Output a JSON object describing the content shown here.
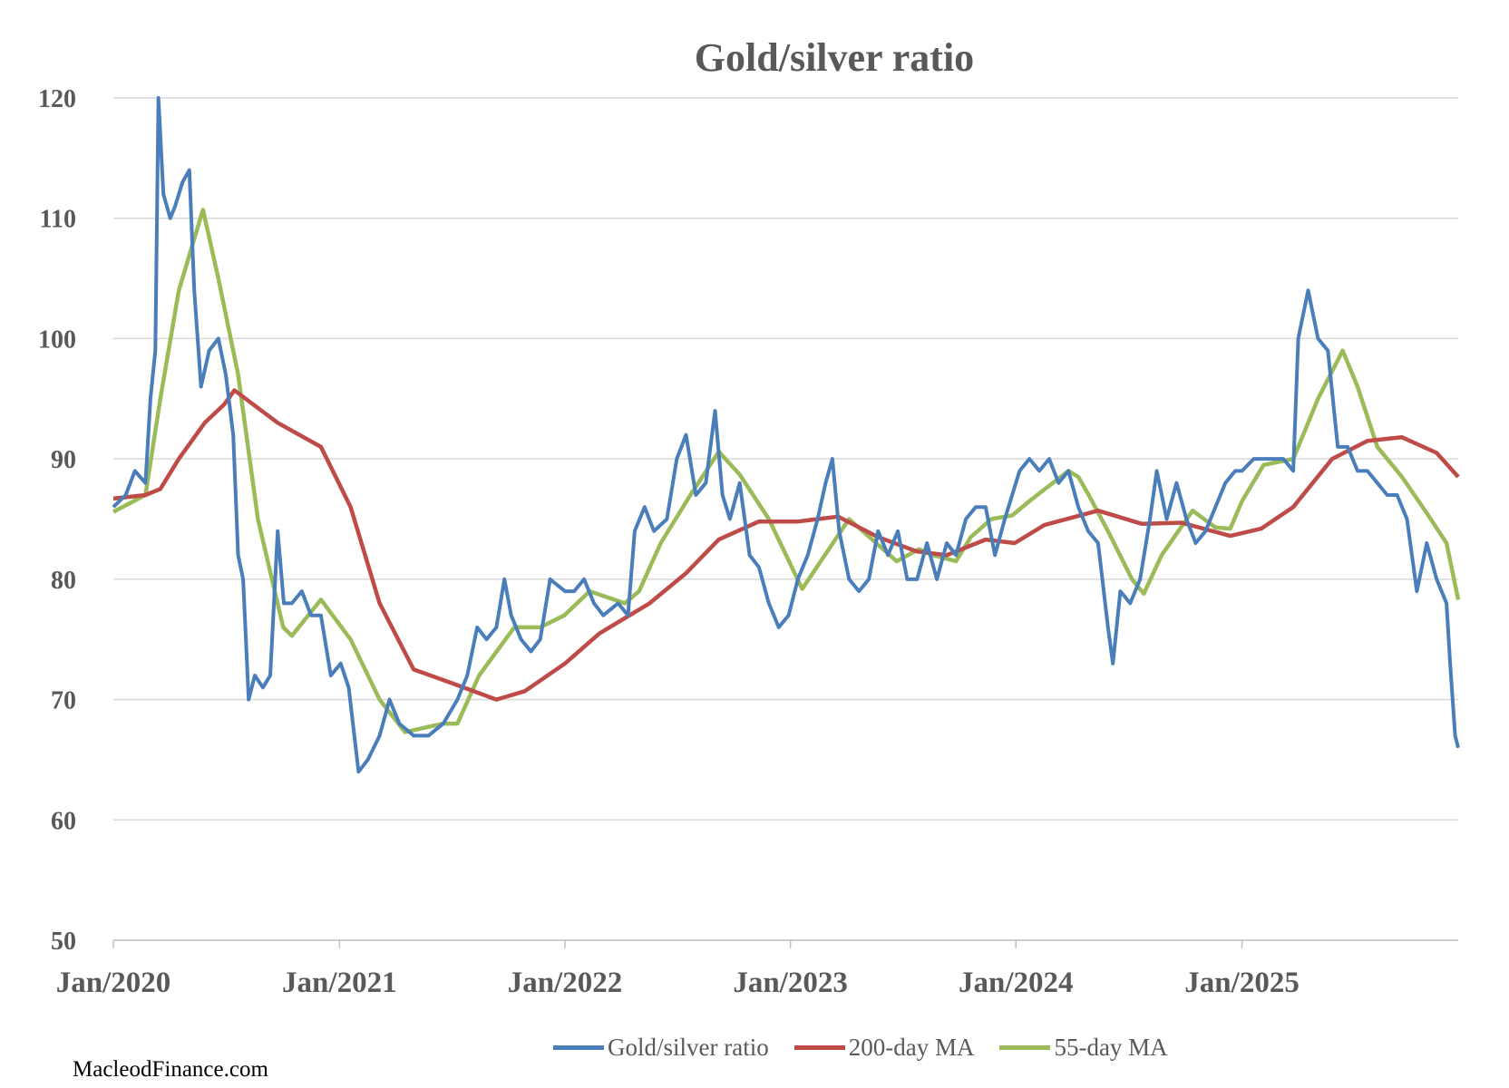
{
  "chart_data": {
    "type": "line",
    "title": "Gold/silver ratio",
    "xlabel": "",
    "ylabel": "",
    "ylim": [
      50,
      120
    ],
    "yticks": [
      50,
      60,
      70,
      80,
      90,
      100,
      110,
      120
    ],
    "xticks": [
      "Jan/2020",
      "Jan/2021",
      "Jan/2022",
      "Jan/2023",
      "Jan/2024",
      "Jan/2025"
    ],
    "xlim": [
      "2020-01-01",
      "2025-12-17"
    ],
    "grid": true,
    "legend_position": "bottom",
    "series": [
      {
        "name": "Gold/silver ratio",
        "color": "#4a7ebb",
        "points": [
          [
            "2020-01-01",
            86
          ],
          [
            "2020-01-21",
            87
          ],
          [
            "2020-02-05",
            89
          ],
          [
            "2020-02-22",
            88
          ],
          [
            "2020-03-01",
            95
          ],
          [
            "2020-03-09",
            99
          ],
          [
            "2020-03-14",
            120
          ],
          [
            "2020-03-22",
            112
          ],
          [
            "2020-04-02",
            110
          ],
          [
            "2020-04-10",
            111
          ],
          [
            "2020-04-22",
            113
          ],
          [
            "2020-05-03",
            114
          ],
          [
            "2020-05-11",
            104
          ],
          [
            "2020-05-22",
            96
          ],
          [
            "2020-06-04",
            99
          ],
          [
            "2020-06-19",
            100
          ],
          [
            "2020-07-01",
            97
          ],
          [
            "2020-07-13",
            92
          ],
          [
            "2020-07-21",
            82
          ],
          [
            "2020-07-29",
            80
          ],
          [
            "2020-08-07",
            70
          ],
          [
            "2020-08-17",
            72
          ],
          [
            "2020-08-30",
            71
          ],
          [
            "2020-09-11",
            72
          ],
          [
            "2020-09-23",
            84
          ],
          [
            "2020-10-03",
            78
          ],
          [
            "2020-10-16",
            78
          ],
          [
            "2020-11-01",
            79
          ],
          [
            "2020-11-16",
            77
          ],
          [
            "2020-12-02",
            77
          ],
          [
            "2020-12-18",
            72
          ],
          [
            "2021-01-03",
            73
          ],
          [
            "2021-01-16",
            71
          ],
          [
            "2021-02-01",
            64
          ],
          [
            "2021-02-16",
            65
          ],
          [
            "2021-03-07",
            67
          ],
          [
            "2021-03-23",
            70
          ],
          [
            "2021-04-08",
            68
          ],
          [
            "2021-05-01",
            67
          ],
          [
            "2021-05-25",
            67
          ],
          [
            "2021-06-18",
            68
          ],
          [
            "2021-07-11",
            70
          ],
          [
            "2021-07-27",
            72
          ],
          [
            "2021-08-12",
            76
          ],
          [
            "2021-08-27",
            75
          ],
          [
            "2021-09-12",
            76
          ],
          [
            "2021-09-25",
            80
          ],
          [
            "2021-10-06",
            77
          ],
          [
            "2021-10-22",
            75
          ],
          [
            "2021-11-07",
            74
          ],
          [
            "2021-11-22",
            75
          ],
          [
            "2021-12-08",
            80
          ],
          [
            "2022-01-01",
            79
          ],
          [
            "2022-01-16",
            79
          ],
          [
            "2022-02-01",
            80
          ],
          [
            "2022-02-17",
            78
          ],
          [
            "2022-03-04",
            77
          ],
          [
            "2022-03-28",
            78
          ],
          [
            "2022-04-13",
            77
          ],
          [
            "2022-04-24",
            84
          ],
          [
            "2022-05-10",
            86
          ],
          [
            "2022-05-25",
            84
          ],
          [
            "2022-06-15",
            85
          ],
          [
            "2022-07-01",
            90
          ],
          [
            "2022-07-16",
            92
          ],
          [
            "2022-08-01",
            87
          ],
          [
            "2022-08-17",
            88
          ],
          [
            "2022-09-01",
            94
          ],
          [
            "2022-09-13",
            87
          ],
          [
            "2022-09-25",
            85
          ],
          [
            "2022-10-11",
            88
          ],
          [
            "2022-10-27",
            82
          ],
          [
            "2022-11-11",
            81
          ],
          [
            "2022-11-27",
            78
          ],
          [
            "2022-12-13",
            76
          ],
          [
            "2022-12-29",
            77
          ],
          [
            "2023-01-13",
            80
          ],
          [
            "2023-01-29",
            82
          ],
          [
            "2023-02-14",
            85
          ],
          [
            "2023-02-27",
            88
          ],
          [
            "2023-03-10",
            90
          ],
          [
            "2023-03-21",
            84
          ],
          [
            "2023-04-06",
            80
          ],
          [
            "2023-04-22",
            79
          ],
          [
            "2023-05-08",
            80
          ],
          [
            "2023-05-23",
            84
          ],
          [
            "2023-06-08",
            82
          ],
          [
            "2023-06-24",
            84
          ],
          [
            "2023-07-09",
            80
          ],
          [
            "2023-07-25",
            80
          ],
          [
            "2023-08-10",
            83
          ],
          [
            "2023-08-26",
            80
          ],
          [
            "2023-09-11",
            83
          ],
          [
            "2023-09-26",
            82
          ],
          [
            "2023-10-12",
            85
          ],
          [
            "2023-10-28",
            86
          ],
          [
            "2023-11-13",
            86
          ],
          [
            "2023-11-28",
            82
          ],
          [
            "2023-12-14",
            85
          ],
          [
            "2024-01-07",
            89
          ],
          [
            "2024-01-23",
            90
          ],
          [
            "2024-02-08",
            89
          ],
          [
            "2024-02-24",
            90
          ],
          [
            "2024-03-10",
            88
          ],
          [
            "2024-03-26",
            89
          ],
          [
            "2024-04-11",
            86
          ],
          [
            "2024-04-27",
            84
          ],
          [
            "2024-05-13",
            83
          ],
          [
            "2024-05-29",
            76
          ],
          [
            "2024-06-06",
            73
          ],
          [
            "2024-06-18",
            79
          ],
          [
            "2024-07-04",
            78
          ],
          [
            "2024-07-20",
            80
          ],
          [
            "2024-08-05",
            85
          ],
          [
            "2024-08-16",
            89
          ],
          [
            "2024-09-01",
            85
          ],
          [
            "2024-09-17",
            88
          ],
          [
            "2024-10-03",
            85
          ],
          [
            "2024-10-18",
            83
          ],
          [
            "2024-11-03",
            84
          ],
          [
            "2024-11-19",
            86
          ],
          [
            "2024-12-05",
            88
          ],
          [
            "2024-12-21",
            89
          ],
          [
            "2025-01-01",
            89
          ],
          [
            "2025-01-20",
            90
          ],
          [
            "2025-02-05",
            90
          ],
          [
            "2025-02-21",
            90
          ],
          [
            "2025-03-09",
            90
          ],
          [
            "2025-03-25",
            89
          ],
          [
            "2025-04-02",
            100
          ],
          [
            "2025-04-18",
            104
          ],
          [
            "2025-05-04",
            100
          ],
          [
            "2025-05-20",
            99
          ],
          [
            "2025-06-05",
            91
          ],
          [
            "2025-06-21",
            91
          ],
          [
            "2025-07-07",
            89
          ],
          [
            "2025-07-23",
            89
          ],
          [
            "2025-08-08",
            88
          ],
          [
            "2025-08-24",
            87
          ],
          [
            "2025-09-09",
            87
          ],
          [
            "2025-09-25",
            85
          ],
          [
            "2025-10-11",
            79
          ],
          [
            "2025-10-27",
            83
          ],
          [
            "2025-11-12",
            80
          ],
          [
            "2025-11-28",
            78
          ],
          [
            "2025-12-04",
            73
          ],
          [
            "2025-12-12",
            67
          ],
          [
            "2025-12-17",
            66
          ]
        ]
      },
      {
        "name": "200-day MA",
        "color": "#be4b48",
        "points": [
          [
            "2020-01-01",
            86.7
          ],
          [
            "2020-02-22",
            87
          ],
          [
            "2020-03-17",
            87.5
          ],
          [
            "2020-04-16",
            90
          ],
          [
            "2020-05-28",
            93
          ],
          [
            "2020-06-28",
            94.5
          ],
          [
            "2020-07-15",
            95.7
          ],
          [
            "2020-09-23",
            93
          ],
          [
            "2020-12-02",
            91
          ],
          [
            "2021-01-19",
            86
          ],
          [
            "2021-03-07",
            78
          ],
          [
            "2021-05-01",
            72.5
          ],
          [
            "2021-06-25",
            71.5
          ],
          [
            "2021-09-12",
            70
          ],
          [
            "2021-10-28",
            70.7
          ],
          [
            "2022-01-01",
            73
          ],
          [
            "2022-02-26",
            75.5
          ],
          [
            "2022-05-18",
            78
          ],
          [
            "2022-07-16",
            80.5
          ],
          [
            "2022-09-07",
            83.3
          ],
          [
            "2022-11-11",
            84.8
          ],
          [
            "2023-01-13",
            84.8
          ],
          [
            "2023-03-19",
            85.2
          ],
          [
            "2023-05-23",
            83.5
          ],
          [
            "2023-07-25",
            82.3
          ],
          [
            "2023-09-11",
            82
          ],
          [
            "2023-11-13",
            83.3
          ],
          [
            "2023-12-30",
            83
          ],
          [
            "2024-02-16",
            84.5
          ],
          [
            "2024-05-13",
            85.7
          ],
          [
            "2024-07-23",
            84.6
          ],
          [
            "2024-09-25",
            84.7
          ],
          [
            "2024-12-13",
            83.6
          ],
          [
            "2025-02-01",
            84.2
          ],
          [
            "2025-03-25",
            86
          ],
          [
            "2025-05-27",
            90
          ],
          [
            "2025-07-23",
            91.5
          ],
          [
            "2025-09-17",
            91.8
          ],
          [
            "2025-11-12",
            90.5
          ],
          [
            "2025-12-17",
            88.5
          ]
        ]
      },
      {
        "name": "55-day MA",
        "color": "#9bbb59",
        "points": [
          [
            "2020-01-01",
            85.6
          ],
          [
            "2020-02-22",
            87
          ],
          [
            "2020-03-17",
            95
          ],
          [
            "2020-04-16",
            104
          ],
          [
            "2020-05-25",
            110.7
          ],
          [
            "2020-06-19",
            105
          ],
          [
            "2020-07-21",
            97
          ],
          [
            "2020-08-22",
            85
          ],
          [
            "2020-10-02",
            76
          ],
          [
            "2020-10-16",
            75.3
          ],
          [
            "2020-12-02",
            78.3
          ],
          [
            "2021-01-19",
            75
          ],
          [
            "2021-03-07",
            70
          ],
          [
            "2021-04-17",
            67.3
          ],
          [
            "2021-06-18",
            68
          ],
          [
            "2021-07-11",
            68
          ],
          [
            "2021-08-15",
            72
          ],
          [
            "2021-10-11",
            76
          ],
          [
            "2021-11-22",
            76
          ],
          [
            "2021-12-31",
            77
          ],
          [
            "2022-02-10",
            79
          ],
          [
            "2022-04-08",
            78
          ],
          [
            "2022-05-01",
            79
          ],
          [
            "2022-06-05",
            83
          ],
          [
            "2022-07-23",
            87
          ],
          [
            "2022-09-07",
            90.6
          ],
          [
            "2022-10-11",
            88.7
          ],
          [
            "2022-11-27",
            85
          ],
          [
            "2023-01-20",
            79.2
          ],
          [
            "2023-04-06",
            85
          ],
          [
            "2023-06-22",
            81.5
          ],
          [
            "2023-07-28",
            82.5
          ],
          [
            "2023-08-20",
            82
          ],
          [
            "2023-09-26",
            81.5
          ],
          [
            "2023-10-20",
            83.5
          ],
          [
            "2023-11-22",
            85
          ],
          [
            "2023-12-26",
            85.3
          ],
          [
            "2024-01-23",
            86.5
          ],
          [
            "2024-03-26",
            89
          ],
          [
            "2024-04-11",
            88.5
          ],
          [
            "2024-04-28",
            87
          ],
          [
            "2024-05-29",
            84
          ],
          [
            "2024-07-07",
            80
          ],
          [
            "2024-07-26",
            78.8
          ],
          [
            "2024-08-24",
            82
          ],
          [
            "2024-10-13",
            85.7
          ],
          [
            "2024-11-19",
            84.3
          ],
          [
            "2024-12-13",
            84.2
          ],
          [
            "2025-01-01",
            86.5
          ],
          [
            "2025-02-05",
            89.5
          ],
          [
            "2025-03-25",
            90
          ],
          [
            "2025-05-04",
            95
          ],
          [
            "2025-06-13",
            99
          ],
          [
            "2025-07-07",
            96
          ],
          [
            "2025-08-08",
            91
          ],
          [
            "2025-09-17",
            88.5
          ],
          [
            "2025-10-27",
            85.5
          ],
          [
            "2025-11-28",
            83
          ],
          [
            "2025-12-17",
            78.3
          ]
        ]
      }
    ]
  },
  "credit": "MacleodFinance.com"
}
